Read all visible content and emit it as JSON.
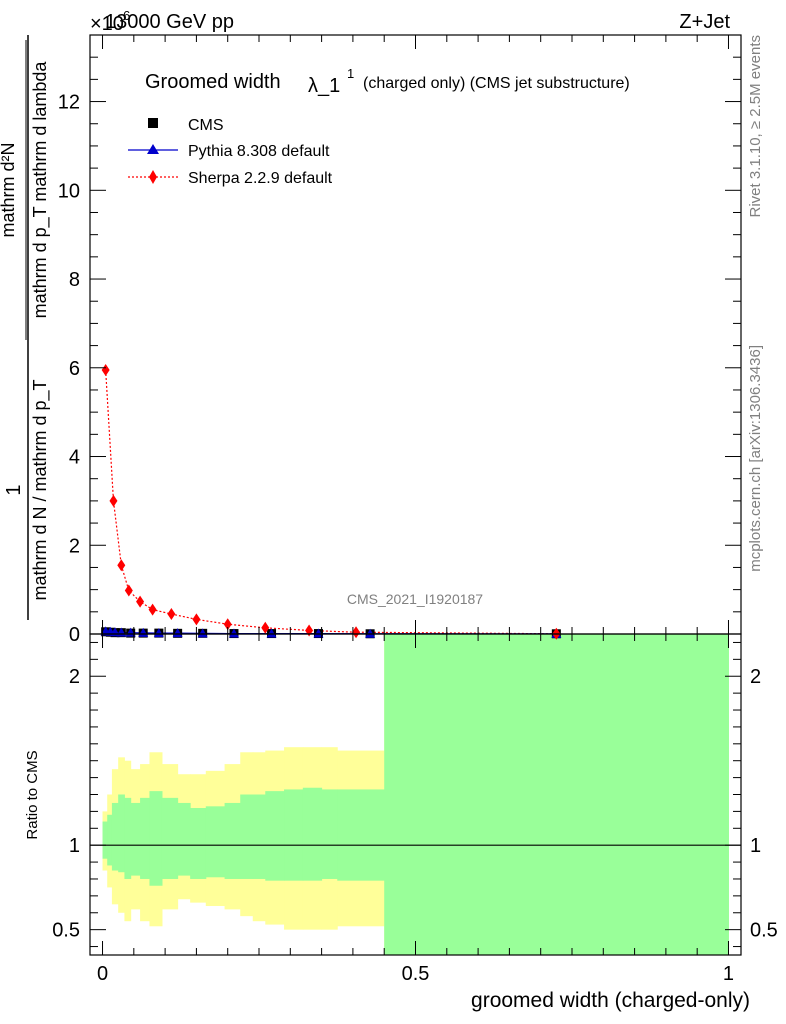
{
  "header": {
    "energy": "13000 GeV pp",
    "process": "Z+Jet",
    "multiplier_prefix": "×10",
    "multiplier_exp": "6"
  },
  "side_labels": {
    "rivet": "Rivet 3.1.10, ≥ 2.5M events",
    "mcplots": "mcplots.cern.ch [arXiv:1306.3436]"
  },
  "watermark": "CMS_2021_I1920187",
  "legend_title": {
    "main": "Groomed width",
    "lambda": "λ_1",
    "sup": "1",
    "suffix": "(charged only) (CMS jet substructure)"
  },
  "colors": {
    "cms": "#000000",
    "pythia": "#0000cc",
    "sherpa": "#ff0000",
    "band_stat": "#99ff99",
    "band_syst": "#ffff99"
  },
  "chart_data": [
    {
      "type": "scatter",
      "panel": "main",
      "ylabel": {
        "frac_line": "1",
        "denominator": "mathrm d N / mathrm d p_T",
        "numerator": "mathrm d²N",
        "denominator2": "mathrm d p_T mathrm d lambda"
      },
      "ylim": [
        0,
        13.5
      ],
      "y_scale_note": "×10^6",
      "yticks": [
        "0",
        "2",
        "4",
        "6",
        "8",
        "10",
        "12"
      ],
      "ytick_values": [
        0,
        2,
        4,
        6,
        8,
        10,
        12
      ],
      "xlim": [
        -0.02,
        1.02
      ],
      "series": [
        {
          "name": "CMS",
          "marker": "square",
          "x": [
            0.005,
            0.0125,
            0.02,
            0.03,
            0.045,
            0.065,
            0.09,
            0.12,
            0.16,
            0.21,
            0.27,
            0.345,
            0.4275,
            0.725
          ],
          "y": [
            0.05,
            0.04,
            0.03,
            0.03,
            0.02,
            0.02,
            0.02,
            0.015,
            0.015,
            0.01,
            0.01,
            0.01,
            0.005,
            0.005
          ]
        },
        {
          "name": "Pythia 8.308 default",
          "marker": "triangle",
          "x": [
            0.005,
            0.0125,
            0.02,
            0.03,
            0.045,
            0.065,
            0.09,
            0.12,
            0.16,
            0.21,
            0.27,
            0.345,
            0.4275,
            0.725
          ],
          "y": [
            0.06,
            0.05,
            0.04,
            0.035,
            0.03,
            0.025,
            0.02,
            0.02,
            0.015,
            0.01,
            0.01,
            0.01,
            0.005,
            0.002
          ]
        },
        {
          "name": "Sherpa 2.2.9 default",
          "marker": "diamond",
          "line": "dotted",
          "x": [
            0.005,
            0.0175,
            0.03,
            0.042,
            0.06,
            0.08,
            0.11,
            0.15,
            0.2,
            0.26,
            0.33,
            0.405,
            0.725
          ],
          "y": [
            5.95,
            3.0,
            1.55,
            0.98,
            0.73,
            0.55,
            0.45,
            0.33,
            0.22,
            0.14,
            0.08,
            0.04,
            0.005
          ]
        }
      ]
    },
    {
      "type": "area",
      "panel": "ratio",
      "ylabel": "Ratio to CMS",
      "xlabel": "groomed width (charged-only)",
      "ylim": [
        0.35,
        2.25
      ],
      "yticks": [
        "0.5",
        "1",
        "2"
      ],
      "ytick_values": [
        0.5,
        1,
        2
      ],
      "xticks": [
        "0",
        "0.5",
        "1"
      ],
      "xtick_values": [
        0,
        0.5,
        1
      ],
      "xlim": [
        -0.02,
        1.02
      ],
      "bins": [
        0,
        0.0075,
        0.015,
        0.025,
        0.035,
        0.045,
        0.06,
        0.075,
        0.095,
        0.12,
        0.14,
        0.165,
        0.195,
        0.22,
        0.24,
        0.26,
        0.29,
        0.32,
        0.35,
        0.375,
        0.45,
        1.0
      ],
      "stat_up": [
        1.14,
        1.18,
        1.25,
        1.3,
        1.28,
        1.25,
        1.28,
        1.32,
        1.28,
        1.25,
        1.22,
        1.23,
        1.25,
        1.3,
        1.3,
        1.32,
        1.33,
        1.34,
        1.33,
        1.33,
        2.25
      ],
      "stat_down": [
        0.92,
        0.88,
        0.85,
        0.84,
        0.8,
        0.82,
        0.8,
        0.76,
        0.8,
        0.82,
        0.8,
        0.81,
        0.8,
        0.8,
        0.8,
        0.79,
        0.79,
        0.79,
        0.8,
        0.79,
        0.35
      ],
      "syst_up": [
        1.2,
        1.3,
        1.45,
        1.52,
        1.5,
        1.45,
        1.48,
        1.55,
        1.48,
        1.42,
        1.42,
        1.44,
        1.48,
        1.55,
        1.55,
        1.56,
        1.58,
        1.58,
        1.58,
        1.56,
        2.25
      ],
      "syst_down": [
        0.85,
        0.75,
        0.65,
        0.6,
        0.55,
        0.62,
        0.55,
        0.52,
        0.62,
        0.68,
        0.66,
        0.64,
        0.62,
        0.58,
        0.55,
        0.53,
        0.5,
        0.5,
        0.5,
        0.52,
        0.35
      ],
      "reference_line": 1
    }
  ]
}
